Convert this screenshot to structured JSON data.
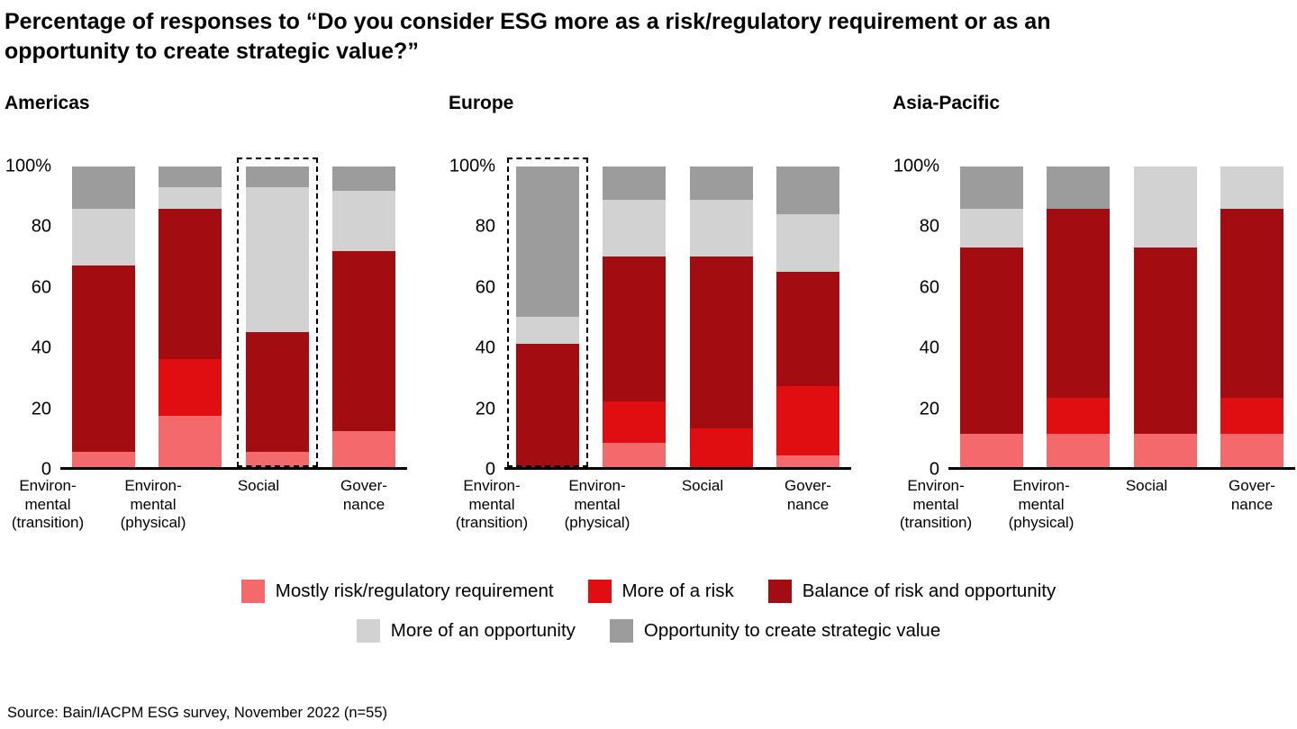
{
  "title": "Percentage of responses to “Do you consider ESG more as a risk/regulatory requirement or as an opportunity to create strategic value?”",
  "source": "Source: Bain/IACPM ESG survey, November 2022 (n=55)",
  "y_axis": {
    "ticks": [
      {
        "value": 100,
        "label": "100%"
      },
      {
        "value": 80,
        "label": "80"
      },
      {
        "value": 60,
        "label": "60"
      },
      {
        "value": 40,
        "label": "40"
      },
      {
        "value": 20,
        "label": "20"
      },
      {
        "value": 0,
        "label": "0"
      }
    ]
  },
  "series_meta": [
    {
      "key": "mostly-risk",
      "name": "Mostly risk/regulatory requirement",
      "color": "#f4696b"
    },
    {
      "key": "more-of-a-risk",
      "name": "More of a risk",
      "color": "#e00d11"
    },
    {
      "key": "balance",
      "name": "Balance of risk and opportunity",
      "color": "#a30c10"
    },
    {
      "key": "more-of-an-opportunity",
      "name": "More of an opportunity",
      "color": "#d2d2d2"
    },
    {
      "key": "strategic-value",
      "name": "Opportunity to create strategic value",
      "color": "#9c9c9c"
    }
  ],
  "legend": {
    "rows": [
      [
        0,
        1,
        2
      ],
      [
        3,
        4
      ]
    ]
  },
  "chart_data": [
    {
      "type": "bar",
      "stacked": true,
      "title": "Americas",
      "ylim": [
        0,
        100
      ],
      "categories": [
        "Environ-\nmental\n(transition)",
        "Environ-\nmental\n(physical)",
        "Social",
        "Gover-\nnance"
      ],
      "highlighted_category_index": 2,
      "series": [
        {
          "name": "Mostly risk/regulatory requirement",
          "values": [
            5,
            17,
            5,
            12
          ]
        },
        {
          "name": "More of a risk",
          "values": [
            0,
            19,
            0,
            0
          ]
        },
        {
          "name": "Balance of risk and opportunity",
          "values": [
            62,
            50,
            40,
            60
          ]
        },
        {
          "name": "More of an opportunity",
          "values": [
            19,
            7,
            48,
            20
          ]
        },
        {
          "name": "Opportunity to create strategic value",
          "values": [
            14,
            7,
            7,
            8
          ]
        }
      ]
    },
    {
      "type": "bar",
      "stacked": true,
      "title": "Europe",
      "ylim": [
        0,
        100
      ],
      "categories": [
        "Environ-\nmental\n(transition)",
        "Environ-\nmental\n(physical)",
        "Social",
        "Gover-\nnance"
      ],
      "highlighted_category_index": 0,
      "series": [
        {
          "name": "Mostly risk/regulatory requirement",
          "values": [
            0,
            8,
            0,
            4
          ]
        },
        {
          "name": "More of a risk",
          "values": [
            0,
            14,
            13,
            23
          ]
        },
        {
          "name": "Balance of risk and opportunity",
          "values": [
            41,
            48,
            57,
            38
          ]
        },
        {
          "name": "More of an opportunity",
          "values": [
            9,
            19,
            19,
            19
          ]
        },
        {
          "name": "Opportunity to create strategic value",
          "values": [
            50,
            11,
            11,
            16
          ]
        }
      ]
    },
    {
      "type": "bar",
      "stacked": true,
      "title": "Asia-Pacific",
      "ylim": [
        0,
        100
      ],
      "categories": [
        "Environ-\nmental\n(transition)",
        "Environ-\nmental\n(physical)",
        "Social",
        "Gover-\nnance"
      ],
      "highlighted_category_index": null,
      "series": [
        {
          "name": "Mostly risk/regulatory requirement",
          "values": [
            11,
            11,
            11,
            11
          ]
        },
        {
          "name": "More of a risk",
          "values": [
            0,
            12,
            0,
            12
          ]
        },
        {
          "name": "Balance of risk and opportunity",
          "values": [
            62,
            63,
            62,
            63
          ]
        },
        {
          "name": "More of an opportunity",
          "values": [
            13,
            0,
            27,
            14
          ]
        },
        {
          "name": "Opportunity to create strategic value",
          "values": [
            14,
            14,
            0,
            0
          ]
        }
      ]
    }
  ]
}
